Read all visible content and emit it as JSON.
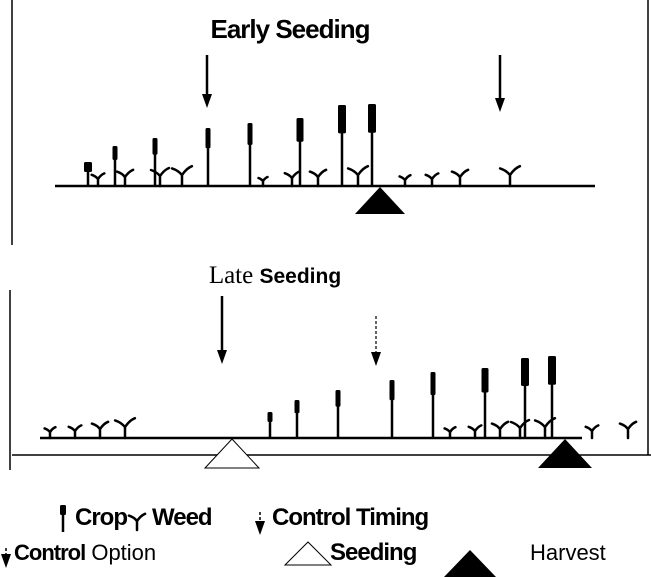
{
  "panels": [
    {
      "title": [
        "Early",
        "Seeding"
      ]
    },
    {
      "title": [
        "Late",
        "Seeding"
      ]
    }
  ],
  "legend": {
    "crop": "Crop",
    "weed": "Weed",
    "control_timing": "Control Timing",
    "control_option": [
      "Control",
      "Option"
    ],
    "seeding": "Seeding",
    "harvest": "Harvest"
  }
}
